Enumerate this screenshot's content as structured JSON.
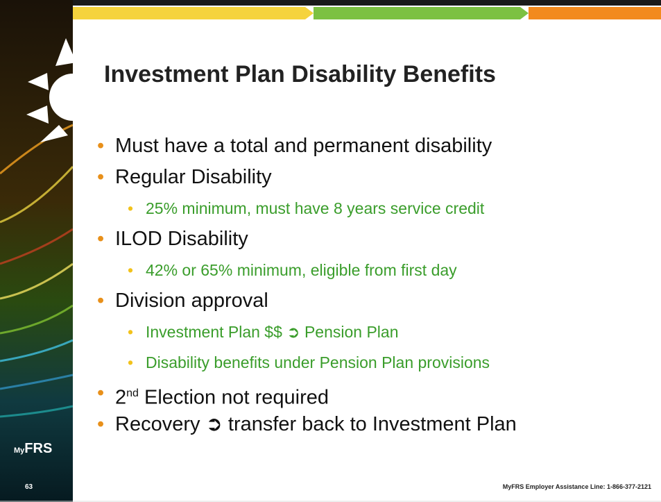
{
  "slide": {
    "title": "Investment Plan Disability Benefits",
    "bullets": [
      {
        "text": "Must have a total and permanent disability"
      },
      {
        "text": "Regular Disability",
        "sub": [
          "25% minimum, must have 8 years service credit"
        ]
      },
      {
        "text": "ILOD Disability",
        "sub": [
          "42% or 65% minimum, eligible from first day"
        ]
      },
      {
        "text": "Division approval",
        "sub": [
          "Investment Plan $$ ➲ Pension Plan",
          "Disability benefits under Pension Plan provisions"
        ]
      },
      {
        "lead": "2",
        "sup": "nd",
        "text": " Election not required"
      },
      {
        "text": "Recovery ➲ transfer back to Investment Plan"
      }
    ],
    "logo": {
      "my": "My",
      "frs": "FRS"
    },
    "number": "63",
    "footer": "MyFRS Employer Assistance Line: 1-866-377-2121"
  }
}
